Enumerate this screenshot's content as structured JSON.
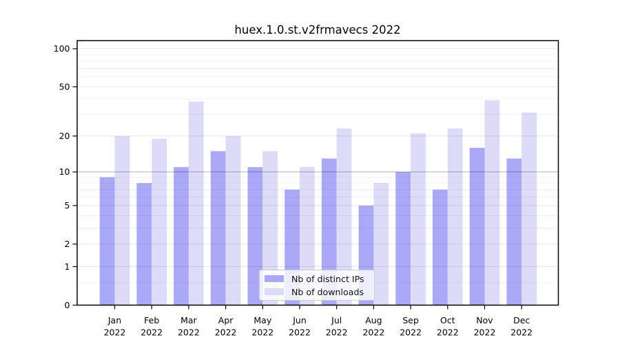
{
  "chart_data": {
    "type": "bar",
    "title": "huex.1.0.st.v2frmavecs 2022",
    "year": "2022",
    "months": [
      "Jan",
      "Feb",
      "Mar",
      "Apr",
      "May",
      "Jun",
      "Jul",
      "Aug",
      "Sep",
      "Oct",
      "Nov",
      "Dec"
    ],
    "categories": [
      "Jan 2022",
      "Feb 2022",
      "Mar 2022",
      "Apr 2022",
      "May 2022",
      "Jun 2022",
      "Jul 2022",
      "Aug 2022",
      "Sep 2022",
      "Oct 2022",
      "Nov 2022",
      "Dec 2022"
    ],
    "series": [
      {
        "id": "distinct-ips",
        "name": "Nb of distinct IPs",
        "color": "#a9a9f6",
        "values": [
          9,
          8,
          11,
          15,
          11,
          7,
          13,
          5,
          10,
          7,
          16,
          13
        ]
      },
      {
        "id": "downloads",
        "name": "Nb of downloads",
        "color": "#dcdcf8",
        "values": [
          20,
          19,
          38,
          20,
          15,
          11,
          23,
          8,
          21,
          23,
          39,
          31
        ]
      }
    ],
    "y_axis": {
      "scale": "log10(value+1)",
      "tick_labels": [
        "100",
        "50",
        "20",
        "10",
        "5",
        "2",
        "1",
        "0"
      ],
      "ticks": [
        100,
        50,
        20,
        10,
        5,
        2,
        1,
        0
      ],
      "minor_ticks": [
        0.5,
        3,
        4,
        6,
        7,
        8,
        9,
        30,
        40,
        60,
        70,
        80,
        90
      ],
      "ylim": [
        0,
        115
      ]
    },
    "legend_position": "lower center",
    "grid": "on"
  }
}
